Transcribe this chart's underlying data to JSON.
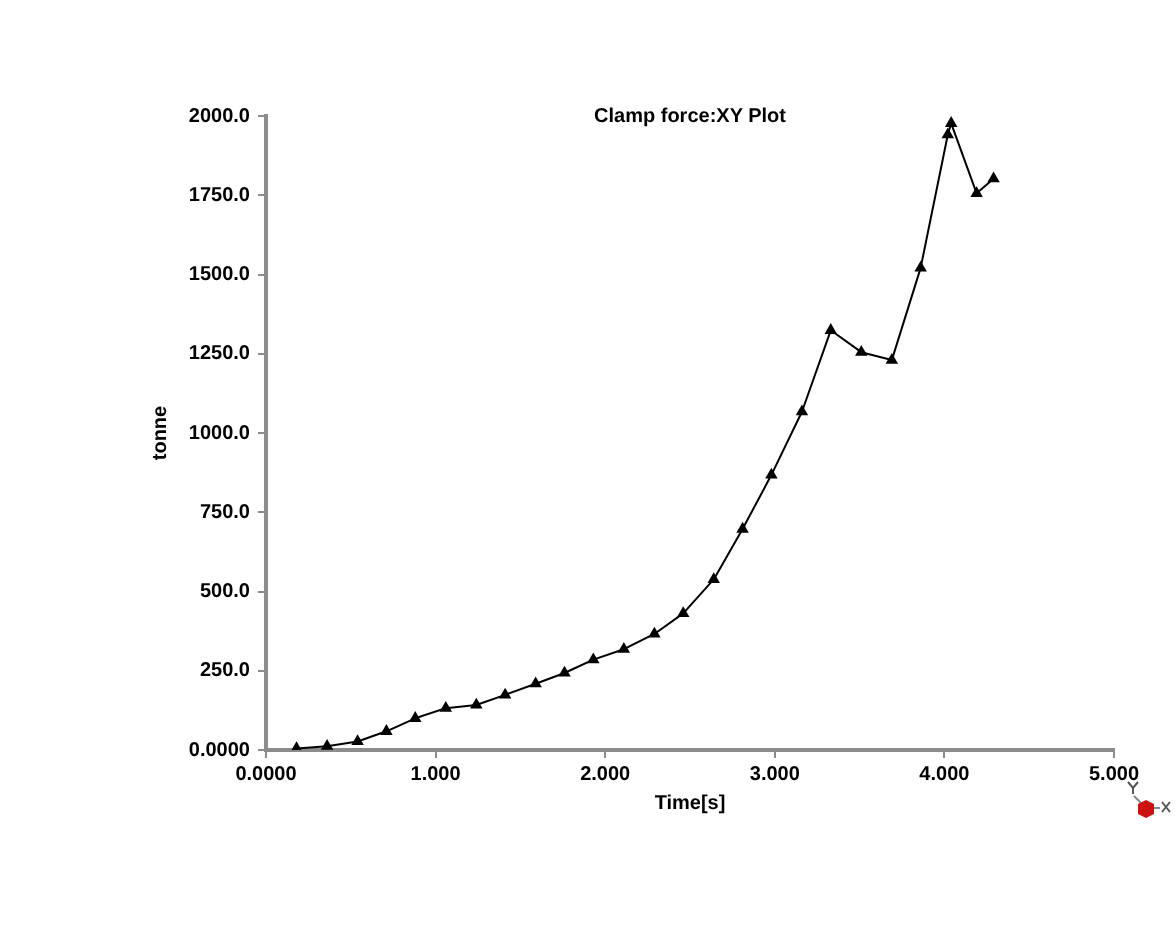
{
  "chart_data": {
    "type": "line",
    "title": "Clamp force:XY Plot",
    "xlabel": "Time[s]",
    "ylabel": "tonne",
    "x": [
      0.18,
      0.36,
      0.54,
      0.71,
      0.88,
      1.06,
      1.24,
      1.41,
      1.59,
      1.76,
      1.93,
      2.11,
      2.29,
      2.46,
      2.64,
      2.81,
      2.98,
      3.16,
      3.33,
      3.51,
      3.69,
      3.86,
      4.02,
      4.04,
      4.19,
      4.29
    ],
    "values": [
      5,
      12,
      27,
      59,
      100,
      132,
      142,
      174,
      209,
      243,
      285,
      318,
      366,
      431,
      538,
      697,
      868,
      1067,
      1324,
      1255,
      1230,
      1521,
      1941,
      1977,
      1756,
      1802
    ],
    "color": "#000000",
    "marker": "triangle",
    "line_style": "solid",
    "xlim": [
      0,
      5
    ],
    "xticks": [
      {
        "value": 0,
        "label": "0.0000"
      },
      {
        "value": 1,
        "label": "1.000"
      },
      {
        "value": 2,
        "label": "2.000"
      },
      {
        "value": 3,
        "label": "3.000"
      },
      {
        "value": 4,
        "label": "4.000"
      },
      {
        "value": 5,
        "label": "5.000"
      }
    ],
    "ylim": [
      0,
      2000
    ],
    "yticks": [
      {
        "value": 0,
        "label": "0.0000"
      },
      {
        "value": 250,
        "label": "250.0"
      },
      {
        "value": 500,
        "label": "500.0"
      },
      {
        "value": 750,
        "label": "750.0"
      },
      {
        "value": 1000,
        "label": "1000.0"
      },
      {
        "value": 1250,
        "label": "1250.0"
      },
      {
        "value": 1500,
        "label": "1500.0"
      },
      {
        "value": 1750,
        "label": "1750.0"
      },
      {
        "value": 2000,
        "label": "2000.0"
      }
    ]
  }
}
